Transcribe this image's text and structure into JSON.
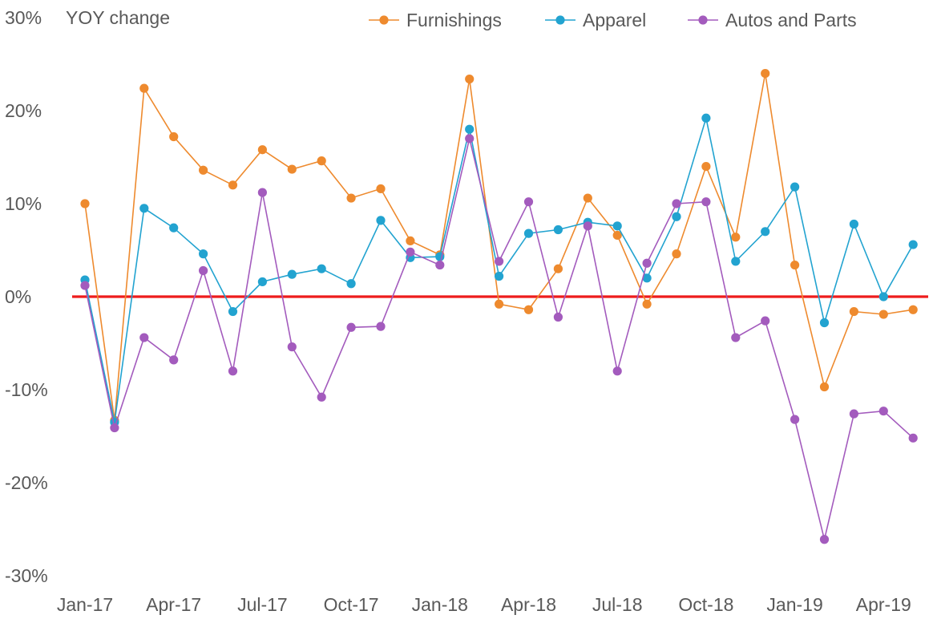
{
  "chart_data": {
    "type": "line",
    "ylabel": "YOY change",
    "ylim": [
      -30,
      30
    ],
    "yticks": [
      "30%",
      "20%",
      "10%",
      "0%",
      "-10%",
      "-20%",
      "-30%"
    ],
    "ytick_values": [
      30,
      20,
      10,
      0,
      -10,
      -20,
      -30
    ],
    "x": [
      "Jan-17",
      "Feb-17",
      "Mar-17",
      "Apr-17",
      "May-17",
      "Jun-17",
      "Jul-17",
      "Aug-17",
      "Sep-17",
      "Oct-17",
      "Nov-17",
      "Dec-17",
      "Jan-18",
      "Feb-18",
      "Mar-18",
      "Apr-18",
      "May-18",
      "Jun-18",
      "Jul-18",
      "Aug-18",
      "Sep-18",
      "Oct-18",
      "Nov-18",
      "Dec-18",
      "Jan-19",
      "Feb-19",
      "Mar-19",
      "Apr-19",
      "May-19"
    ],
    "xtick_labels": [
      "Jan-17",
      "Apr-17",
      "Jul-17",
      "Oct-17",
      "Jan-18",
      "Apr-18",
      "Jul-18",
      "Oct-18",
      "Jan-19",
      "Apr-19"
    ],
    "xtick_indices": [
      0,
      3,
      6,
      9,
      12,
      15,
      18,
      21,
      24,
      27
    ],
    "reference_line": {
      "y": 0,
      "color": "#ee1c1c"
    },
    "legend_position": "top-right",
    "series": [
      {
        "name": "Furnishings",
        "color": "#ee8a2e",
        "values": [
          10.0,
          -13.3,
          22.4,
          17.2,
          13.6,
          12.0,
          15.8,
          13.7,
          14.6,
          10.6,
          11.6,
          6.0,
          4.5,
          23.4,
          -0.8,
          -1.4,
          3.0,
          10.6,
          6.6,
          -0.8,
          4.6,
          14.0,
          6.4,
          24.0,
          3.4,
          -9.7,
          -1.6,
          -1.9,
          -1.4
        ]
      },
      {
        "name": "Apparel",
        "color": "#22a3d0",
        "values": [
          1.8,
          -13.5,
          9.5,
          7.4,
          4.6,
          -1.6,
          1.6,
          2.4,
          3.0,
          1.4,
          8.2,
          4.2,
          4.3,
          18.0,
          2.2,
          6.8,
          7.2,
          8.0,
          7.6,
          2.0,
          8.6,
          19.2,
          3.8,
          7.0,
          11.8,
          -2.8,
          7.8,
          0.0,
          5.6
        ]
      },
      {
        "name": "Autos and Parts",
        "color": "#a35bbd",
        "values": [
          1.2,
          -14.1,
          -4.4,
          -6.8,
          2.8,
          -8.0,
          11.2,
          -5.4,
          -10.8,
          -3.3,
          -3.2,
          4.8,
          3.4,
          17.0,
          3.8,
          10.2,
          -2.2,
          7.6,
          -8.0,
          3.6,
          10.0,
          10.2,
          -4.4,
          -2.6,
          -13.2,
          -26.1,
          -12.6,
          -12.3,
          -15.2
        ]
      }
    ]
  }
}
